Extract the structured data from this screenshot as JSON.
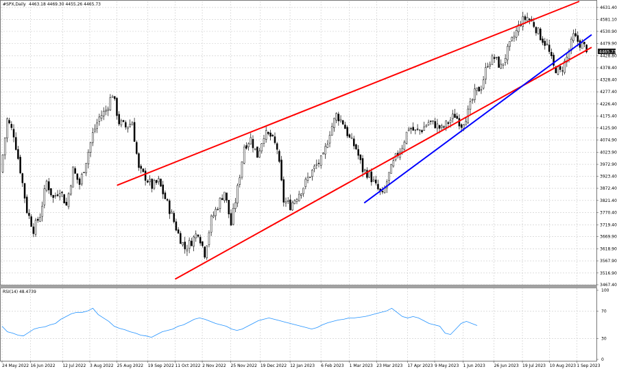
{
  "header": {
    "symbol": "#SPX,Daily",
    "ohlc": "4463.18 4469.30 4455.26 4465.73"
  },
  "rsi_label": "RSI(14) 48.4739",
  "colors": {
    "candle": "#000000",
    "channel": "#ff0000",
    "trendline": "#0000ff",
    "rsi": "#1e90ff",
    "grid": "#c8c8c8"
  },
  "chart_data": [
    {
      "type": "candlestick",
      "title": "#SPX,Daily",
      "grid": true,
      "ylim": [
        3467.4,
        4657
      ],
      "y_ticks": [
        "4631.40",
        "4581.10",
        "4530.90",
        "4479.90",
        "4428.80",
        "4378.40",
        "4328.40",
        "4277.40",
        "4226.40",
        "4175.40",
        "4125.90",
        "4074.90",
        "4023.90",
        "3972.90",
        "3923.40",
        "3872.40",
        "3821.40",
        "3770.40",
        "3719.40",
        "3669.90",
        "3618.90",
        "3567.90",
        "3516.90",
        "3467.40"
      ],
      "current_price": "4465.73",
      "x_ticks": [
        "24 May 2022",
        "16 Jun 2022",
        "12 Jul 2022",
        "3 Aug 2022",
        "25 Aug 2022",
        "19 Sep 2022",
        "11 Oct 2022",
        "2 Nov 2022",
        "25 Nov 2022",
        "19 Dec 2022",
        "12 Jan 2023",
        "6 Feb 2023",
        "1 Mar 2023",
        "23 Mar 2023",
        "17 Apr 2023",
        "9 May 2023",
        "1 Jun 2023",
        "26 Jun 2023",
        "19 Jul 2023",
        "10 Aug 2023",
        "1 Sep 2023"
      ],
      "closes": [
        3940,
        4160,
        4100,
        3950,
        3780,
        3700,
        3760,
        3900,
        3830,
        3870,
        3800,
        3950,
        3890,
        3990,
        4100,
        4170,
        4200,
        4270,
        4150,
        4130,
        4150,
        3950,
        3920,
        3880,
        3900,
        3830,
        3760,
        3680,
        3620,
        3650,
        3690,
        3600,
        3740,
        3800,
        3860,
        3720,
        3870,
        4050,
        4080,
        4010,
        4100,
        4090,
        4040,
        3820,
        3800,
        3840,
        3880,
        3930,
        3970,
        4000,
        4110,
        4180,
        4150,
        4080,
        4040,
        3950,
        3930,
        3880,
        3840,
        3930,
        4000,
        4050,
        4130,
        4110,
        4120,
        4150,
        4140,
        4120,
        4150,
        4180,
        4140,
        4190,
        4270,
        4300,
        4400,
        4420,
        4380,
        4450,
        4510,
        4570,
        4590,
        4560,
        4510,
        4470,
        4380,
        4360,
        4420,
        4510,
        4480,
        4460
      ],
      "sma_ma": {
        "upper_channel": [
          [
            "25 Aug 2022",
            3885
          ],
          [
            "3 Sep 2023",
            4657
          ]
        ],
        "lower_channel": [
          [
            "11 Oct 2022",
            3491
          ],
          [
            "13 Sep 2023",
            4464
          ]
        ],
        "blue_trendline": [
          [
            "13 Mar 2023",
            3811
          ],
          [
            "13 Sep 2023",
            4517
          ]
        ]
      }
    },
    {
      "type": "line",
      "title": "RSI(14) 48.4739",
      "ylim": [
        0,
        100
      ],
      "y_ticks": [
        "100",
        "70",
        "30",
        "0"
      ],
      "values": [
        48,
        40,
        38,
        35,
        34,
        39,
        44,
        46,
        47,
        50,
        52,
        58,
        62,
        66,
        68,
        68,
        70,
        74,
        65,
        60,
        55,
        48,
        45,
        43,
        40,
        38,
        35,
        34,
        32,
        36,
        40,
        42,
        44,
        48,
        50,
        54,
        58,
        60,
        58,
        55,
        52,
        50,
        48,
        44,
        42,
        44,
        48,
        52,
        56,
        58,
        60,
        58,
        56,
        54,
        52,
        50,
        48,
        46,
        44,
        46,
        50,
        53,
        55,
        57,
        58,
        60,
        60,
        61,
        62,
        64,
        66,
        68,
        70,
        74,
        68,
        62,
        60,
        62,
        60,
        56,
        52,
        50,
        48,
        38,
        36,
        44,
        52,
        55,
        52,
        49
      ]
    }
  ]
}
